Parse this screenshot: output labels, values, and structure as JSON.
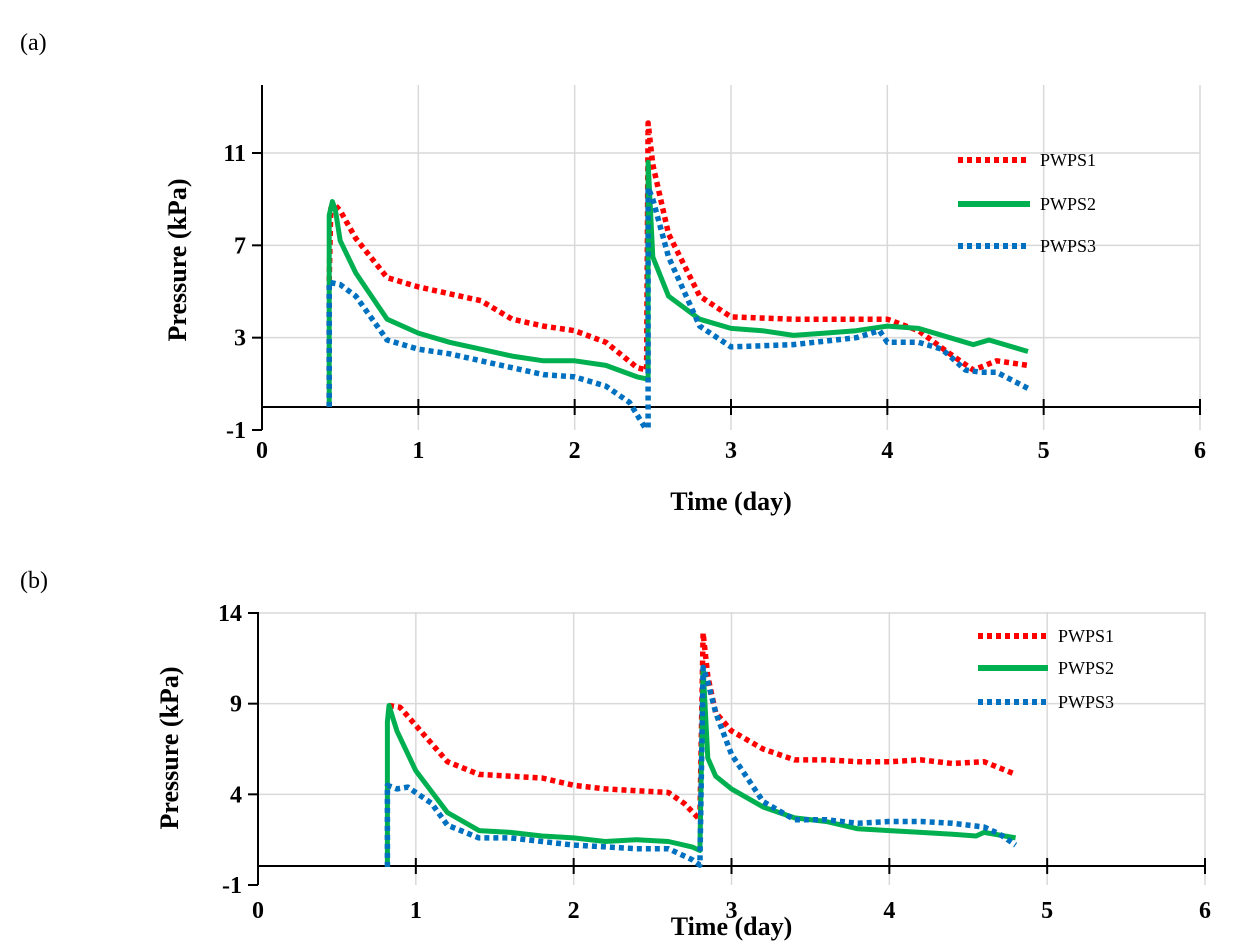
{
  "chart_data": [
    {
      "panel": "(a)",
      "type": "line",
      "title": "",
      "xlabel": "Time (day)",
      "ylabel": "Pressure (kPa)",
      "xlim": [
        0,
        6
      ],
      "ylim": [
        -1,
        14
      ],
      "xticks": [
        "0",
        "1",
        "2",
        "3",
        "4",
        "5",
        "6"
      ],
      "yticks": [
        "-1",
        "3",
        "7",
        "11"
      ],
      "grid": true,
      "legend_position": "top-right",
      "series": [
        {
          "name": "PWPS1",
          "color": "#ff0000",
          "style": "dotted",
          "points": [
            [
              0.43,
              0
            ],
            [
              0.43,
              5.5
            ],
            [
              0.44,
              8.6
            ],
            [
              0.46,
              8.8
            ],
            [
              0.5,
              8.5
            ],
            [
              0.6,
              7.3
            ],
            [
              0.8,
              5.6
            ],
            [
              1.0,
              5.2
            ],
            [
              1.2,
              4.9
            ],
            [
              1.4,
              4.6
            ],
            [
              1.6,
              3.8
            ],
            [
              1.8,
              3.5
            ],
            [
              2.0,
              3.3
            ],
            [
              2.2,
              2.8
            ],
            [
              2.4,
              1.7
            ],
            [
              2.46,
              1.6
            ],
            [
              2.47,
              12.3
            ],
            [
              2.5,
              10.5
            ],
            [
              2.6,
              7.5
            ],
            [
              2.8,
              4.8
            ],
            [
              3.0,
              3.9
            ],
            [
              3.4,
              3.8
            ],
            [
              3.8,
              3.8
            ],
            [
              4.0,
              3.8
            ],
            [
              4.2,
              3.3
            ],
            [
              4.4,
              2.3
            ],
            [
              4.55,
              1.6
            ],
            [
              4.7,
              2.0
            ],
            [
              4.9,
              1.8
            ]
          ]
        },
        {
          "name": "PWPS2",
          "color": "#00b050",
          "style": "solid",
          "points": [
            [
              0.43,
              0
            ],
            [
              0.43,
              8.3
            ],
            [
              0.45,
              8.9
            ],
            [
              0.47,
              8.5
            ],
            [
              0.5,
              7.2
            ],
            [
              0.6,
              5.8
            ],
            [
              0.8,
              3.8
            ],
            [
              1.0,
              3.2
            ],
            [
              1.2,
              2.8
            ],
            [
              1.4,
              2.5
            ],
            [
              1.6,
              2.2
            ],
            [
              1.8,
              2.0
            ],
            [
              2.0,
              2.0
            ],
            [
              2.2,
              1.8
            ],
            [
              2.4,
              1.3
            ],
            [
              2.47,
              1.2
            ],
            [
              2.47,
              10.6
            ],
            [
              2.5,
              6.5
            ],
            [
              2.6,
              4.8
            ],
            [
              2.8,
              3.8
            ],
            [
              3.0,
              3.4
            ],
            [
              3.2,
              3.3
            ],
            [
              3.4,
              3.1
            ],
            [
              3.6,
              3.2
            ],
            [
              3.8,
              3.3
            ],
            [
              4.0,
              3.5
            ],
            [
              4.2,
              3.4
            ],
            [
              4.4,
              3.0
            ],
            [
              4.55,
              2.7
            ],
            [
              4.65,
              2.9
            ],
            [
              4.9,
              2.4
            ]
          ]
        },
        {
          "name": "PWPS3",
          "color": "#0070c0",
          "style": "dotted",
          "points": [
            [
              0.43,
              0
            ],
            [
              0.43,
              5.4
            ],
            [
              0.5,
              5.3
            ],
            [
              0.6,
              4.8
            ],
            [
              0.8,
              2.9
            ],
            [
              1.0,
              2.5
            ],
            [
              1.2,
              2.3
            ],
            [
              1.4,
              2.0
            ],
            [
              1.6,
              1.7
            ],
            [
              1.8,
              1.4
            ],
            [
              2.0,
              1.3
            ],
            [
              2.2,
              0.9
            ],
            [
              2.35,
              0.2
            ],
            [
              2.45,
              -0.9
            ],
            [
              2.47,
              -0.9
            ],
            [
              2.47,
              9.5
            ],
            [
              2.5,
              9.0
            ],
            [
              2.6,
              6.5
            ],
            [
              2.8,
              3.5
            ],
            [
              3.0,
              2.6
            ],
            [
              3.4,
              2.7
            ],
            [
              3.8,
              3.0
            ],
            [
              3.95,
              3.3
            ],
            [
              4.0,
              2.8
            ],
            [
              4.2,
              2.8
            ],
            [
              4.35,
              2.5
            ],
            [
              4.5,
              1.6
            ],
            [
              4.6,
              1.5
            ],
            [
              4.7,
              1.5
            ],
            [
              4.9,
              0.8
            ]
          ]
        }
      ]
    },
    {
      "panel": "(b)",
      "type": "line",
      "title": "",
      "xlabel": "Time (day)",
      "ylabel": "Pressure (kPa)",
      "xlim": [
        0,
        6
      ],
      "ylim": [
        -1,
        14
      ],
      "xticks": [
        "0",
        "1",
        "2",
        "3",
        "4",
        "5",
        "6"
      ],
      "yticks": [
        "-1",
        "4",
        "9",
        "14"
      ],
      "grid": true,
      "legend_position": "top-right",
      "series": [
        {
          "name": "PWPS1",
          "color": "#ff0000",
          "style": "dotted",
          "points": [
            [
              0.83,
              8.9
            ],
            [
              0.9,
              8.8
            ],
            [
              1.0,
              7.8
            ],
            [
              1.2,
              5.8
            ],
            [
              1.4,
              5.1
            ],
            [
              1.6,
              5.0
            ],
            [
              1.8,
              4.9
            ],
            [
              2.0,
              4.5
            ],
            [
              2.2,
              4.3
            ],
            [
              2.4,
              4.2
            ],
            [
              2.6,
              4.1
            ],
            [
              2.7,
              3.5
            ],
            [
              2.8,
              2.6
            ],
            [
              2.82,
              12.9
            ],
            [
              2.85,
              10.5
            ],
            [
              2.9,
              8.5
            ],
            [
              3.0,
              7.5
            ],
            [
              3.2,
              6.5
            ],
            [
              3.4,
              5.9
            ],
            [
              3.6,
              5.9
            ],
            [
              3.8,
              5.8
            ],
            [
              4.0,
              5.8
            ],
            [
              4.2,
              5.9
            ],
            [
              4.4,
              5.7
            ],
            [
              4.6,
              5.8
            ],
            [
              4.8,
              5.1
            ]
          ]
        },
        {
          "name": "PWPS2",
          "color": "#00b050",
          "style": "solid",
          "points": [
            [
              0.82,
              0
            ],
            [
              0.82,
              8.0
            ],
            [
              0.83,
              8.9
            ],
            [
              0.88,
              7.5
            ],
            [
              1.0,
              5.3
            ],
            [
              1.2,
              3.0
            ],
            [
              1.4,
              2.0
            ],
            [
              1.6,
              1.9
            ],
            [
              1.8,
              1.7
            ],
            [
              2.0,
              1.6
            ],
            [
              2.2,
              1.4
            ],
            [
              2.4,
              1.5
            ],
            [
              2.6,
              1.4
            ],
            [
              2.75,
              1.1
            ],
            [
              2.8,
              0.9
            ],
            [
              2.82,
              11.0
            ],
            [
              2.85,
              6.0
            ],
            [
              2.9,
              5.0
            ],
            [
              3.0,
              4.3
            ],
            [
              3.2,
              3.3
            ],
            [
              3.4,
              2.7
            ],
            [
              3.6,
              2.5
            ],
            [
              3.8,
              2.1
            ],
            [
              4.0,
              2.0
            ],
            [
              4.2,
              1.9
            ],
            [
              4.4,
              1.8
            ],
            [
              4.55,
              1.7
            ],
            [
              4.6,
              1.9
            ],
            [
              4.8,
              1.6
            ]
          ]
        },
        {
          "name": "PWPS3",
          "color": "#0070c0",
          "style": "dotted",
          "points": [
            [
              0.82,
              0
            ],
            [
              0.82,
              4.5
            ],
            [
              0.88,
              4.3
            ],
            [
              0.95,
              4.4
            ],
            [
              1.1,
              3.5
            ],
            [
              1.2,
              2.3
            ],
            [
              1.4,
              1.6
            ],
            [
              1.6,
              1.6
            ],
            [
              1.8,
              1.4
            ],
            [
              2.0,
              1.2
            ],
            [
              2.2,
              1.1
            ],
            [
              2.4,
              1.0
            ],
            [
              2.6,
              1.0
            ],
            [
              2.75,
              0.4
            ],
            [
              2.8,
              0.1
            ],
            [
              2.82,
              11.0
            ],
            [
              2.85,
              10.2
            ],
            [
              2.9,
              8.5
            ],
            [
              3.0,
              6.2
            ],
            [
              3.2,
              3.6
            ],
            [
              3.4,
              2.6
            ],
            [
              3.6,
              2.6
            ],
            [
              3.8,
              2.4
            ],
            [
              4.0,
              2.5
            ],
            [
              4.2,
              2.5
            ],
            [
              4.4,
              2.4
            ],
            [
              4.6,
              2.2
            ],
            [
              4.7,
              1.8
            ],
            [
              4.8,
              1.2
            ]
          ]
        }
      ]
    }
  ]
}
